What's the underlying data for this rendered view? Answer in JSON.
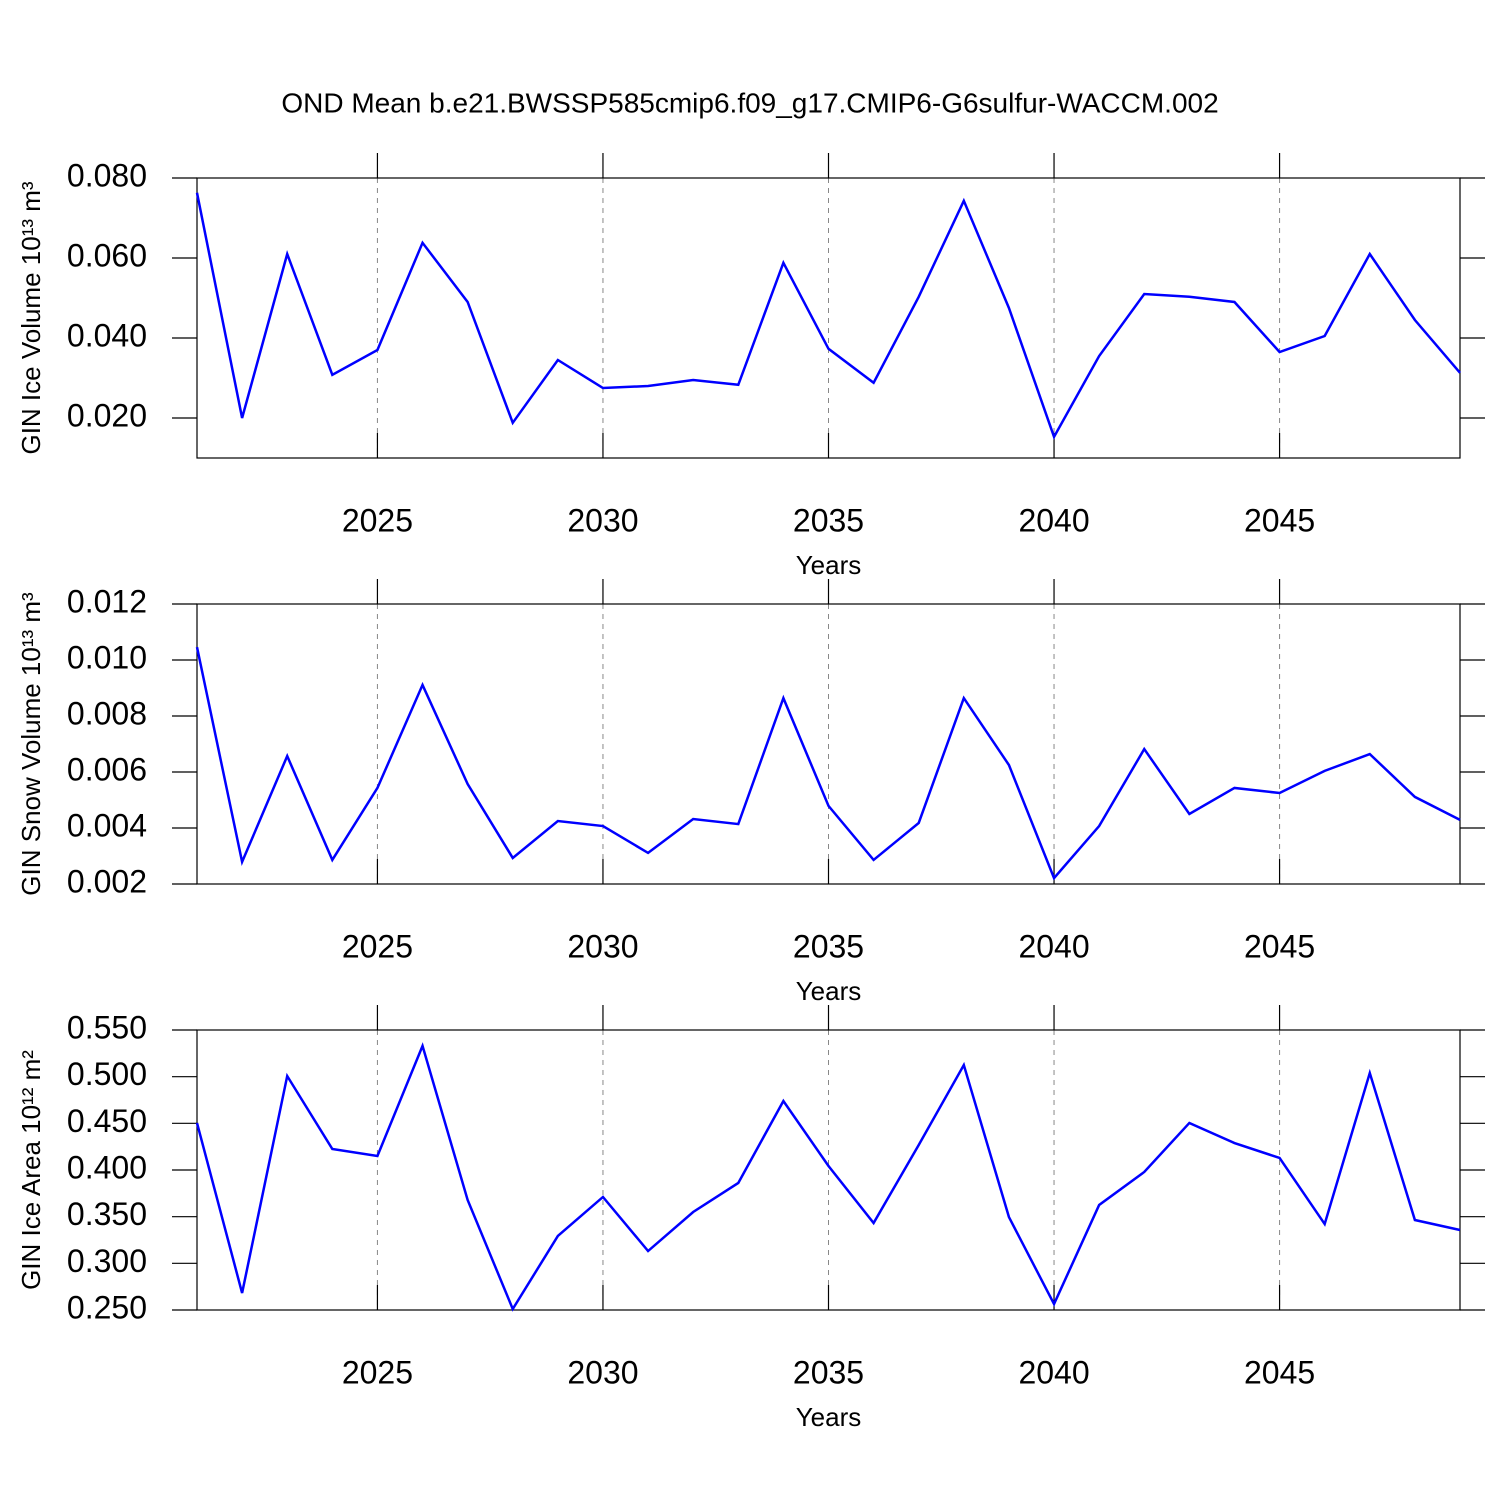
{
  "title": "OND Mean b.e21.BWSSP585cmip6.f09_g17.CMIP6-G6sulfur-WACCM.002",
  "chart_data": [
    {
      "type": "line",
      "xlabel": "Years",
      "ylabel": "GIN Ice Volume 10¹³ m³",
      "x": [
        2021,
        2022,
        2023,
        2024,
        2025,
        2026,
        2027,
        2028,
        2029,
        2030,
        2031,
        2032,
        2033,
        2034,
        2035,
        2036,
        2037,
        2038,
        2039,
        2040,
        2041,
        2042,
        2043,
        2044,
        2045,
        2046,
        2047,
        2048,
        2049
      ],
      "series": [
        {
          "color": "#0000ff",
          "values": [
            0.0763,
            0.02,
            0.061,
            0.0308,
            0.037,
            0.0638,
            0.049,
            0.0188,
            0.0345,
            0.0275,
            0.028,
            0.0295,
            0.0283,
            0.0588,
            0.0373,
            0.0288,
            0.0503,
            0.0743,
            0.0475,
            0.0153,
            0.0355,
            0.051,
            0.0503,
            0.049,
            0.0365,
            0.0405,
            0.061,
            0.0445,
            0.0313
          ]
        }
      ],
      "xlim": [
        2021,
        2049
      ],
      "xticks": [
        2025,
        2030,
        2035,
        2040,
        2045
      ],
      "ylim": [
        0.01,
        0.08
      ],
      "yticks": [
        {
          "value": 0.02,
          "label": "0.020"
        },
        {
          "value": 0.04,
          "label": "0.040"
        },
        {
          "value": 0.06,
          "label": "0.060"
        },
        {
          "value": 0.08,
          "label": "0.080"
        }
      ],
      "xgrid": true
    },
    {
      "type": "line",
      "xlabel": "Years",
      "ylabel": "GIN Snow Volume 10¹³ m³",
      "x": [
        2021,
        2022,
        2023,
        2024,
        2025,
        2026,
        2027,
        2028,
        2029,
        2030,
        2031,
        2032,
        2033,
        2034,
        2035,
        2036,
        2037,
        2038,
        2039,
        2040,
        2041,
        2042,
        2043,
        2044,
        2045,
        2046,
        2047,
        2048,
        2049
      ],
      "series": [
        {
          "color": "#0000ff",
          "values": [
            0.01046,
            0.00279,
            0.00657,
            0.00286,
            0.00543,
            0.00911,
            0.00557,
            0.00293,
            0.00425,
            0.00407,
            0.00311,
            0.00432,
            0.00414,
            0.00864,
            0.00479,
            0.00286,
            0.00418,
            0.00864,
            0.00625,
            0.00221,
            0.00407,
            0.00682,
            0.0045,
            0.00543,
            0.00525,
            0.00604,
            0.00664,
            0.00511,
            0.00429
          ]
        }
      ],
      "xlim": [
        2021,
        2049
      ],
      "xticks": [
        2025,
        2030,
        2035,
        2040,
        2045
      ],
      "ylim": [
        0.002,
        0.012
      ],
      "yticks": [
        {
          "value": 0.002,
          "label": "0.002"
        },
        {
          "value": 0.004,
          "label": "0.004"
        },
        {
          "value": 0.006,
          "label": "0.006"
        },
        {
          "value": 0.008,
          "label": "0.008"
        },
        {
          "value": 0.01,
          "label": "0.010"
        },
        {
          "value": 0.012,
          "label": "0.012"
        }
      ],
      "xgrid": true
    },
    {
      "type": "line",
      "xlabel": "Years",
      "ylabel": "GIN Ice Area 10¹² m²",
      "x": [
        2021,
        2022,
        2023,
        2024,
        2025,
        2026,
        2027,
        2028,
        2029,
        2030,
        2031,
        2032,
        2033,
        2034,
        2035,
        2036,
        2037,
        2038,
        2039,
        2040,
        2041,
        2042,
        2043,
        2044,
        2045,
        2046,
        2047,
        2048,
        2049
      ],
      "series": [
        {
          "color": "#0000ff",
          "values": [
            0.4504,
            0.2682,
            0.5007,
            0.4225,
            0.415,
            0.5329,
            0.3679,
            0.2511,
            0.3293,
            0.3711,
            0.3132,
            0.355,
            0.3861,
            0.4739,
            0.4043,
            0.3432,
            0.4268,
            0.5125,
            0.3496,
            0.2564,
            0.3625,
            0.3979,
            0.4504,
            0.4289,
            0.4129,
            0.3421,
            0.5039,
            0.3464,
            0.3357
          ]
        }
      ],
      "xlim": [
        2021,
        2049
      ],
      "xticks": [
        2025,
        2030,
        2035,
        2040,
        2045
      ],
      "ylim": [
        0.25,
        0.55
      ],
      "yticks": [
        {
          "value": 0.25,
          "label": "0.250"
        },
        {
          "value": 0.3,
          "label": "0.300"
        },
        {
          "value": 0.35,
          "label": "0.350"
        },
        {
          "value": 0.4,
          "label": "0.400"
        },
        {
          "value": 0.45,
          "label": "0.450"
        },
        {
          "value": 0.5,
          "label": "0.500"
        },
        {
          "value": 0.55,
          "label": "0.550"
        }
      ],
      "xgrid": true
    }
  ]
}
